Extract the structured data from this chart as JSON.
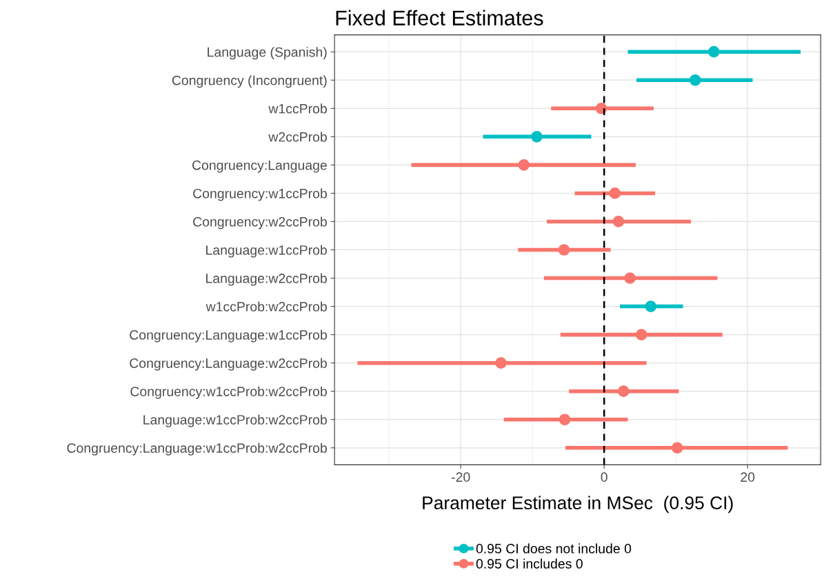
{
  "chart_data": {
    "type": "scatter",
    "orientation": "horizontal",
    "title": "Fixed Effect Estimates",
    "xlabel": "Parameter Estimate in MSec  (0.95 CI)",
    "categories": [
      "Language (Spanish)",
      "Congruency (Incongruent)",
      "w1ccProb",
      "w2ccProb",
      "Congruency:Language",
      "Congruency:w1ccProb",
      "Congruency:w2ccProb",
      "Language:w1ccProb",
      "Language:w2ccProb",
      "w1ccProb:w2ccProb",
      "Congruency:Language:w1ccProb",
      "Congruency:Language:w2ccProb",
      "Congruency:w1ccProb:w2ccProb",
      "Language:w1ccProb:w2ccProb",
      "Congruency:Language:w1ccProb:w2ccProb"
    ],
    "series": [
      {
        "name": "0.95 CI does not include 0",
        "color": "#00bfc4",
        "values": [
          15.3,
          12.7,
          null,
          -9.4,
          null,
          null,
          null,
          null,
          null,
          6.5,
          null,
          null,
          null,
          null,
          null
        ],
        "errors": [
          [
            3.3,
            27.4
          ],
          [
            4.5,
            20.7
          ],
          null,
          [
            -16.9,
            -1.8
          ],
          null,
          null,
          null,
          null,
          null,
          [
            2.2,
            11.0
          ],
          null,
          null,
          null,
          null,
          null
        ]
      },
      {
        "name": "0.95 CI includes 0",
        "color": "#f8766d",
        "values": [
          null,
          null,
          -0.4,
          null,
          -11.2,
          1.5,
          2.0,
          -5.6,
          3.6,
          null,
          5.2,
          -14.4,
          2.7,
          -5.5,
          10.2
        ],
        "errors": [
          null,
          null,
          [
            -7.4,
            6.9
          ],
          null,
          [
            -26.9,
            4.4
          ],
          [
            -4.1,
            7.1
          ],
          [
            -8.0,
            12.1
          ],
          [
            -12.0,
            0.9
          ],
          [
            -8.4,
            15.8
          ],
          null,
          [
            -6.1,
            16.5
          ],
          [
            -34.4,
            5.9
          ],
          [
            -4.9,
            10.4
          ],
          [
            -14.0,
            3.3
          ],
          [
            -5.4,
            25.6
          ]
        ]
      }
    ],
    "xlim": [
      -37.6,
      30.2
    ],
    "xticks": [
      -20,
      0,
      20
    ],
    "grid": true,
    "legend": "bottom",
    "marker": "circle",
    "ref_lines": [
      {
        "axis": "x",
        "value": 0,
        "color": "#000000",
        "line_style": "dashed"
      }
    ]
  }
}
